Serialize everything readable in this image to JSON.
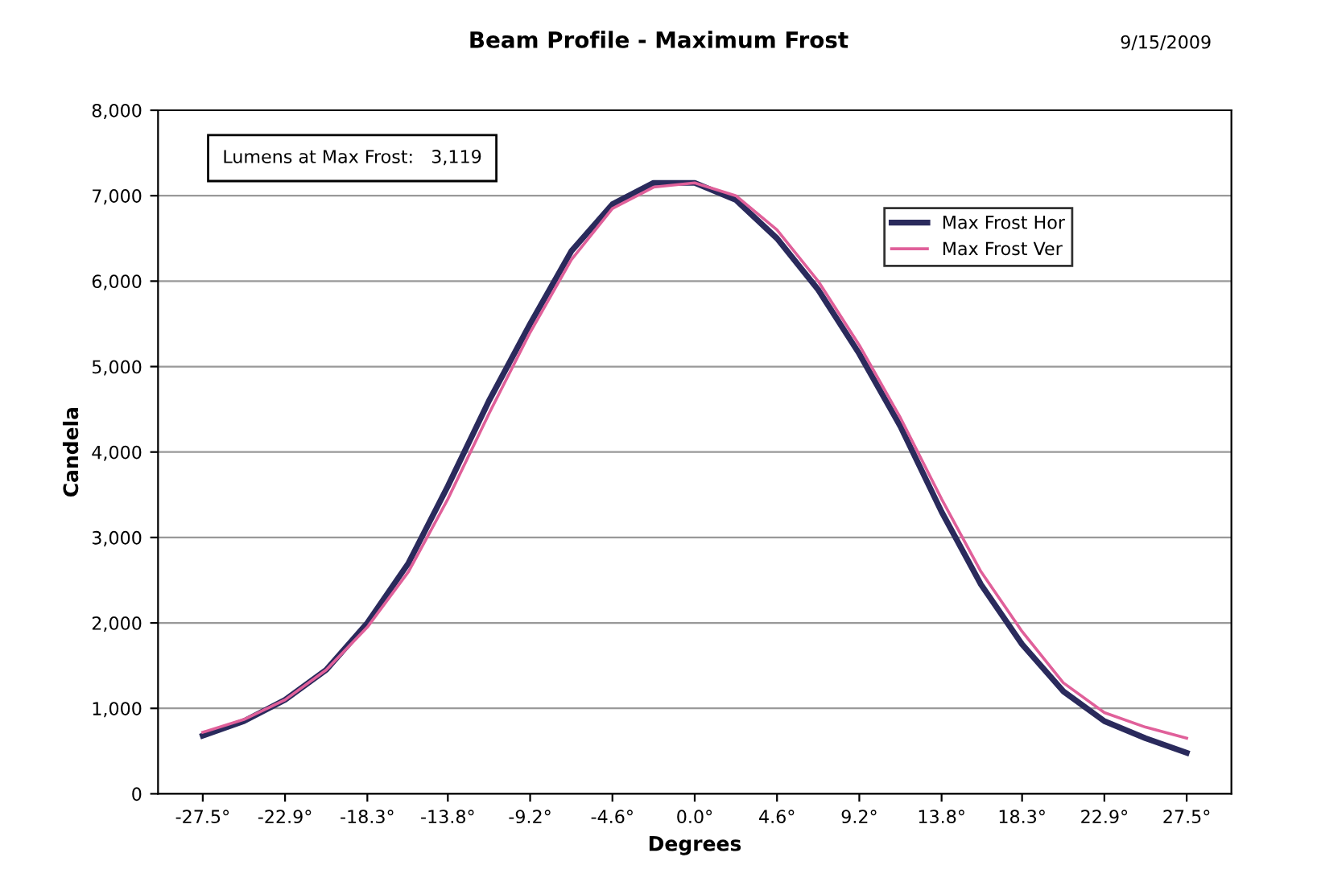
{
  "chart_data": {
    "type": "line",
    "title": "Beam Profile - Maximum Frost",
    "xlabel": "Degrees",
    "ylabel": "Candela",
    "annotations": [
      "9/15/2009",
      "Lumens at Max Frost:   3,119"
    ],
    "x": [
      -27.5,
      -25.2,
      -22.9,
      -20.6,
      -18.3,
      -16.0,
      -13.8,
      -11.5,
      -9.2,
      -6.9,
      -4.6,
      -2.3,
      0.0,
      2.3,
      4.6,
      6.9,
      9.2,
      11.5,
      13.8,
      16.0,
      18.3,
      20.6,
      22.9,
      25.2,
      27.5
    ],
    "series": [
      {
        "name": "Max Frost Hor",
        "color": "#2a2a5c",
        "values": [
          680,
          850,
          1100,
          1450,
          2000,
          2700,
          3600,
          4600,
          5500,
          6350,
          6900,
          7150,
          7150,
          6950,
          6500,
          5900,
          5150,
          4300,
          3300,
          2450,
          1750,
          1200,
          850,
          650,
          480
        ]
      },
      {
        "name": "Max Frost Ver",
        "color": "#e0609a",
        "values": [
          720,
          870,
          1100,
          1450,
          1950,
          2600,
          3450,
          4450,
          5400,
          6250,
          6850,
          7100,
          7150,
          7000,
          6600,
          6000,
          5250,
          4400,
          3450,
          2600,
          1900,
          1300,
          950,
          780,
          650
        ]
      }
    ],
    "xlim": [
      -30,
      30
    ],
    "ylim": [
      0,
      8000
    ],
    "xticks": [
      {
        "value": -27.5,
        "label": "-27.5°"
      },
      {
        "value": -22.9,
        "label": "-22.9°"
      },
      {
        "value": -18.3,
        "label": "-18.3°"
      },
      {
        "value": -13.8,
        "label": "-13.8°"
      },
      {
        "value": -9.2,
        "label": "-9.2°"
      },
      {
        "value": -4.6,
        "label": "-4.6°"
      },
      {
        "value": 0,
        "label": "0.0°"
      },
      {
        "value": 4.6,
        "label": "4.6°"
      },
      {
        "value": 9.2,
        "label": "9.2°"
      },
      {
        "value": 13.8,
        "label": "13.8°"
      },
      {
        "value": 18.3,
        "label": "18.3°"
      },
      {
        "value": 22.9,
        "label": "22.9°"
      },
      {
        "value": 27.5,
        "label": "27.5°"
      }
    ],
    "yticks": [
      0,
      {
        "value": 1000,
        "label": "1,000"
      },
      {
        "value": 2000,
        "label": "2,000"
      },
      {
        "value": 3000,
        "label": "3,000"
      },
      {
        "value": 4000,
        "label": "4,000"
      },
      {
        "value": 5000,
        "label": "5,000"
      },
      {
        "value": 6000,
        "label": "6,000"
      },
      {
        "value": 7000,
        "label": "7,000"
      },
      {
        "value": 8000,
        "label": "8,000"
      }
    ],
    "grid": "y",
    "legend": "top right",
    "marker": "none",
    "line_style": "solid"
  }
}
